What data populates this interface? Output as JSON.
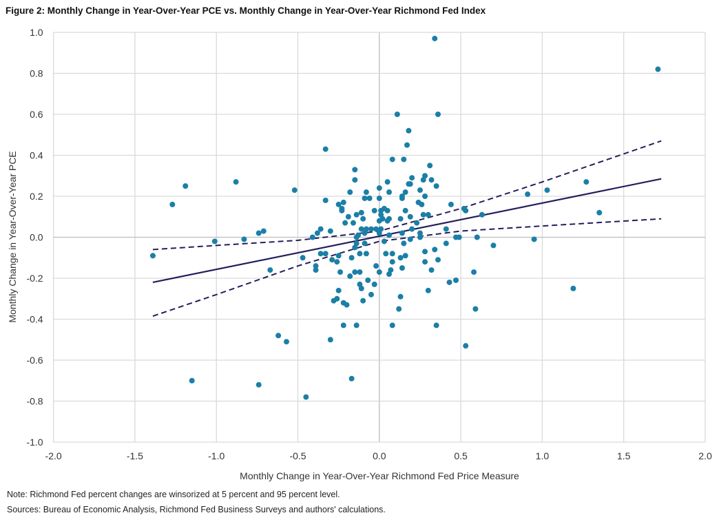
{
  "chart_data": {
    "type": "scatter",
    "title": "Figure 2: Monthly Change in Year-Over-Year PCE vs. Monthly Change in Year-Over-Year Richmond Fed Index",
    "xlabel": "Monthly Change in Year-Over-Year Richmond Fed Price Measure",
    "ylabel": "Monthly Change in Year-Over-Year PCE",
    "xlim": [
      -2.0,
      2.0
    ],
    "ylim": [
      -1.0,
      1.0
    ],
    "xticks": [
      "-2.0",
      "-1.5",
      "-1.0",
      "-0.5",
      "0.0",
      "0.5",
      "1.0",
      "1.5",
      "2.0"
    ],
    "yticks": [
      "1.0",
      "0.8",
      "0.6",
      "0.4",
      "0.2",
      "0.0",
      "-0.2",
      "-0.4",
      "-0.6",
      "-0.8",
      "-1.0"
    ],
    "grid": true,
    "colors": {
      "points": "#1b7fa6",
      "lines": "#231d5c",
      "grid": "#d9d9d9"
    },
    "points": [
      [
        -1.39,
        -0.09
      ],
      [
        -1.27,
        0.16
      ],
      [
        -1.19,
        0.25
      ],
      [
        -1.15,
        -0.7
      ],
      [
        -1.01,
        -0.02
      ],
      [
        -0.88,
        0.27
      ],
      [
        -0.83,
        -0.01
      ],
      [
        -0.74,
        0.02
      ],
      [
        -0.71,
        0.03
      ],
      [
        -0.74,
        -0.72
      ],
      [
        -0.67,
        -0.16
      ],
      [
        -0.62,
        -0.48
      ],
      [
        -0.57,
        -0.51
      ],
      [
        -0.52,
        0.23
      ],
      [
        -0.47,
        -0.1
      ],
      [
        -0.45,
        -0.78
      ],
      [
        0.34,
        0.97
      ],
      [
        1.71,
        0.82
      ],
      [
        0.91,
        0.21
      ],
      [
        1.03,
        0.23
      ],
      [
        1.27,
        0.27
      ],
      [
        1.35,
        0.12
      ],
      [
        0.95,
        -0.01
      ],
      [
        0.7,
        -0.04
      ],
      [
        0.6,
        0.0
      ],
      [
        0.63,
        0.11
      ],
      [
        1.19,
        -0.25
      ],
      [
        0.58,
        -0.17
      ],
      [
        0.59,
        -0.35
      ],
      [
        -0.41,
        0.0
      ],
      [
        -0.36,
        -0.08
      ],
      [
        -0.33,
        -0.08
      ],
      [
        -0.29,
        -0.11
      ],
      [
        -0.26,
        -0.12
      ],
      [
        -0.25,
        -0.09
      ],
      [
        -0.39,
        -0.14
      ],
      [
        -0.39,
        -0.16
      ],
      [
        -0.24,
        -0.17
      ],
      [
        -0.25,
        -0.26
      ],
      [
        -0.28,
        -0.31
      ],
      [
        -0.26,
        -0.3
      ],
      [
        -0.22,
        -0.32
      ],
      [
        -0.2,
        -0.33
      ],
      [
        -0.22,
        -0.43
      ],
      [
        -0.14,
        -0.43
      ],
      [
        -0.3,
        -0.5
      ],
      [
        -0.18,
        -0.19
      ],
      [
        -0.15,
        -0.17
      ],
      [
        -0.12,
        -0.17
      ],
      [
        -0.12,
        -0.23
      ],
      [
        -0.11,
        -0.25
      ],
      [
        -0.1,
        -0.31
      ],
      [
        -0.07,
        -0.21
      ],
      [
        -0.05,
        -0.28
      ],
      [
        -0.03,
        -0.23
      ],
      [
        -0.02,
        -0.14
      ],
      [
        0.0,
        -0.17
      ],
      [
        0.03,
        -0.02
      ],
      [
        0.04,
        -0.08
      ],
      [
        0.08,
        -0.08
      ],
      [
        0.08,
        -0.12
      ],
      [
        0.07,
        -0.16
      ],
      [
        0.06,
        -0.18
      ],
      [
        0.14,
        -0.15
      ],
      [
        0.13,
        -0.1
      ],
      [
        0.16,
        -0.09
      ],
      [
        0.15,
        -0.03
      ],
      [
        0.19,
        -0.01
      ],
      [
        0.13,
        -0.29
      ],
      [
        0.12,
        -0.35
      ],
      [
        0.08,
        -0.43
      ],
      [
        0.28,
        -0.07
      ],
      [
        0.28,
        -0.12
      ],
      [
        0.34,
        -0.06
      ],
      [
        0.36,
        -0.11
      ],
      [
        0.32,
        -0.16
      ],
      [
        0.3,
        -0.26
      ],
      [
        0.35,
        -0.43
      ],
      [
        0.41,
        -0.03
      ],
      [
        0.43,
        -0.22
      ],
      [
        0.47,
        -0.21
      ],
      [
        0.53,
        -0.53
      ],
      [
        -0.14,
        -0.03
      ],
      [
        -0.09,
        -0.03
      ],
      [
        -0.17,
        -0.1
      ],
      [
        -0.12,
        -0.08
      ],
      [
        -0.08,
        -0.08
      ],
      [
        -0.15,
        -0.05
      ],
      [
        -0.14,
        0.0
      ],
      [
        -0.17,
        -0.69
      ],
      [
        -0.33,
        0.43
      ],
      [
        0.11,
        0.6
      ],
      [
        0.36,
        0.6
      ],
      [
        0.18,
        0.52
      ],
      [
        0.17,
        0.45
      ],
      [
        0.08,
        0.38
      ],
      [
        0.15,
        0.38
      ],
      [
        0.31,
        0.35
      ],
      [
        -0.15,
        0.33
      ],
      [
        -0.15,
        0.28
      ],
      [
        0.05,
        0.27
      ],
      [
        0.2,
        0.29
      ],
      [
        0.19,
        0.26
      ],
      [
        0.18,
        0.26
      ],
      [
        0.28,
        0.3
      ],
      [
        0.27,
        0.28
      ],
      [
        0.32,
        0.28
      ],
      [
        0.35,
        0.25
      ],
      [
        0.25,
        0.23
      ],
      [
        0.28,
        0.2
      ],
      [
        0.16,
        0.22
      ],
      [
        0.14,
        0.2
      ],
      [
        0.14,
        0.19
      ],
      [
        0.06,
        0.22
      ],
      [
        0.0,
        0.24
      ],
      [
        0.0,
        0.19
      ],
      [
        -0.18,
        0.22
      ],
      [
        -0.08,
        0.22
      ],
      [
        -0.09,
        0.19
      ],
      [
        -0.06,
        0.19
      ],
      [
        -0.33,
        0.18
      ],
      [
        -0.25,
        0.16
      ],
      [
        -0.22,
        0.17
      ],
      [
        -0.23,
        0.14
      ],
      [
        -0.23,
        0.13
      ],
      [
        0.24,
        0.17
      ],
      [
        0.26,
        0.16
      ],
      [
        0.16,
        0.13
      ],
      [
        0.01,
        0.13
      ],
      [
        0.03,
        0.14
      ],
      [
        0.05,
        0.13
      ],
      [
        -0.03,
        0.13
      ],
      [
        -0.11,
        0.12
      ],
      [
        -0.14,
        0.11
      ],
      [
        -0.19,
        0.1
      ],
      [
        -0.1,
        0.09
      ],
      [
        -0.21,
        0.07
      ],
      [
        -0.16,
        0.07
      ],
      [
        0.01,
        0.11
      ],
      [
        0.02,
        0.09
      ],
      [
        0.06,
        0.09
      ],
      [
        0.05,
        0.08
      ],
      [
        0.0,
        0.08
      ],
      [
        0.13,
        0.09
      ],
      [
        0.19,
        0.1
      ],
      [
        0.23,
        0.07
      ],
      [
        0.27,
        0.11
      ],
      [
        0.3,
        0.11
      ],
      [
        0.44,
        0.16
      ],
      [
        0.52,
        0.14
      ],
      [
        0.53,
        0.13
      ],
      [
        -0.36,
        0.04
      ],
      [
        -0.38,
        0.02
      ],
      [
        -0.3,
        0.03
      ],
      [
        -0.11,
        0.04
      ],
      [
        -0.08,
        0.04
      ],
      [
        -0.05,
        0.04
      ],
      [
        -0.02,
        0.04
      ],
      [
        0.01,
        0.04
      ],
      [
        -0.13,
        0.01
      ],
      [
        -0.09,
        0.02
      ],
      [
        0.0,
        0.02
      ],
      [
        0.06,
        0.01
      ],
      [
        0.14,
        0.02
      ],
      [
        0.2,
        0.04
      ],
      [
        0.25,
        0.02
      ],
      [
        0.25,
        0.0
      ],
      [
        0.41,
        0.04
      ],
      [
        0.47,
        0.0
      ],
      [
        0.49,
        0.0
      ]
    ],
    "fit_line": [
      [
        -1.39,
        -0.22
      ],
      [
        1.73,
        0.285
      ]
    ],
    "upper_band": [
      [
        -1.39,
        -0.06
      ],
      [
        -1.0,
        -0.04
      ],
      [
        -0.5,
        -0.015
      ],
      [
        0.0,
        0.03
      ],
      [
        0.5,
        0.14
      ],
      [
        1.0,
        0.27
      ],
      [
        1.73,
        0.47
      ]
    ],
    "lower_band": [
      [
        -1.39,
        -0.385
      ],
      [
        -1.0,
        -0.28
      ],
      [
        -0.5,
        -0.14
      ],
      [
        0.0,
        -0.02
      ],
      [
        0.5,
        0.03
      ],
      [
        1.0,
        0.055
      ],
      [
        1.73,
        0.09
      ]
    ]
  },
  "notes": {
    "note": "Note: Richmond Fed percent changes are winsorized at 5 percent and 95 percent level.",
    "sources": "Sources: Bureau of Economic Analysis, Richmond Fed Business Surveys and authors' calculations."
  }
}
